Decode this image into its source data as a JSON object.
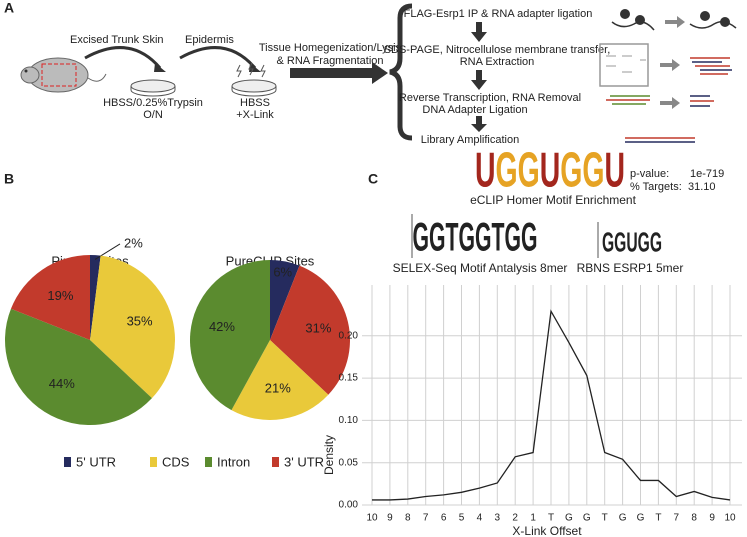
{
  "panel_labels": [
    "A",
    "B",
    "C"
  ],
  "panel_a": {
    "skin_label": "Excised Trunk Skin",
    "epidermis_label": "Epidermis",
    "dish1": [
      "HBSS/0.25%Trypsin",
      "O/N"
    ],
    "dish2": [
      "HBSS",
      "+X-Link"
    ],
    "process": [
      "Tissue Homegenization/Lysis",
      "& RNA Fragmentation"
    ],
    "steps": [
      [
        "FLAG-Esrp1 IP & RNA adapter ligation"
      ],
      [
        "SDS-PAGE, Nitrocellulose membrane transfer,",
        "RNA Extraction"
      ],
      [
        "Reverse Transcription, RNA Removal",
        "DNA Adapter Ligation"
      ],
      [
        "Library Amplification"
      ]
    ]
  },
  "motifs": {
    "consensus": "UGGUGGU",
    "pvalue_label": "p-value:",
    "pvalue": "1e-719",
    "targets_label": "% Targets:",
    "targets": "31.10",
    "ecLIP_title": "eCLIP Homer Motif Enrichment",
    "selex_logo": "GGTGGTGG",
    "selex_title": "SELEX-Seq Motif Antalysis 8mer",
    "rbns_logo": "GGUGG",
    "rbns_title": "RBNS ESRP1 5mer"
  },
  "legend": [
    {
      "name": "5' UTR",
      "color": "#252b5e"
    },
    {
      "name": "CDS",
      "color": "#e9c93a"
    },
    {
      "name": "Intron",
      "color": "#5b8b2f"
    },
    {
      "name": "3' UTR",
      "color": "#c23a2c"
    }
  ],
  "chart_data": [
    {
      "type": "pie",
      "title": "Piranha Sites",
      "values": [
        2,
        35,
        44,
        19
      ],
      "value_labels": [
        "2%",
        "35%",
        "44%",
        "19%"
      ],
      "colors": [
        "#252b5e",
        "#e9c93a",
        "#5b8b2f",
        "#c23a2c"
      ]
    },
    {
      "type": "pie",
      "title": "PureCLIP Sites",
      "values": [
        6,
        31,
        21,
        42
      ],
      "value_labels": [
        "6%",
        "31%",
        "21%",
        "42%"
      ],
      "colors": [
        "#252b5e",
        "#c23a2c",
        "#e9c93a",
        "#5b8b2f"
      ]
    },
    {
      "type": "line",
      "xlabel": "X-Link Offset",
      "ylabel": "Density",
      "categories": [
        "10",
        "9",
        "8",
        "7",
        "6",
        "5",
        "4",
        "3",
        "2",
        "1",
        "T",
        "G",
        "G",
        "T",
        "G",
        "G",
        "T",
        "7",
        "8",
        "9",
        "10"
      ],
      "values": [
        0.006,
        0.006,
        0.007,
        0.01,
        0.012,
        0.015,
        0.02,
        0.026,
        0.057,
        0.062,
        0.229,
        0.192,
        0.153,
        0.062,
        0.054,
        0.029,
        0.029,
        0.01,
        0.016,
        0.009,
        0.006
      ],
      "color": "#222222",
      "ylim": [
        0,
        0.26
      ],
      "yticks": [
        {
          "value": 0,
          "label": "0.00"
        },
        {
          "value": 0.05,
          "label": "0.05"
        },
        {
          "value": 0.1,
          "label": "0.10"
        },
        {
          "value": 0.15,
          "label": "0.15"
        },
        {
          "value": 0.2,
          "label": "0.20"
        }
      ],
      "grid": true
    }
  ]
}
